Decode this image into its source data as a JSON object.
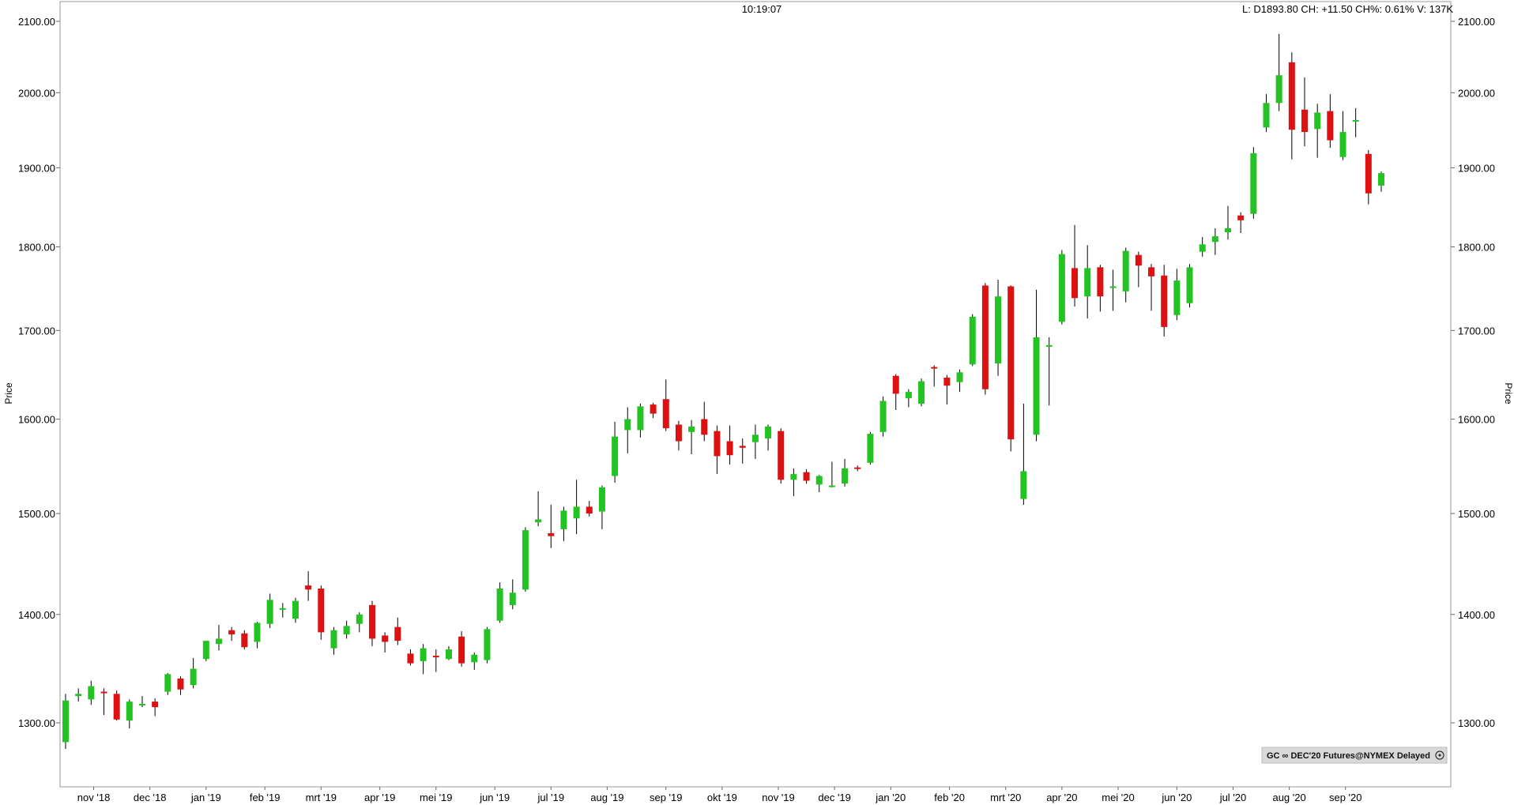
{
  "header": {
    "time": "10:19:07",
    "quote": "L: D1893.80 CH: +11.50 CH%: 0.61% V: 137K"
  },
  "badge": {
    "text": "GC ∞ DEC'20 Futures@NYMEX Delayed",
    "icon": "info-circle-icon"
  },
  "chart_data": {
    "type": "candlestick",
    "title": "",
    "xlabel": "",
    "ylabel": "Price",
    "y_scale": "log",
    "ylim": [
      1255,
      2135
    ],
    "yticks": [
      "1300.00",
      "1400.00",
      "1500.00",
      "1600.00",
      "1700.00",
      "1800.00",
      "1900.00",
      "2000.00",
      "2100.00"
    ],
    "yticks_values": [
      1300,
      1400,
      1500,
      1600,
      1700,
      1800,
      1900,
      2000,
      2100
    ],
    "month_labels": [
      {
        "label": "nov '18",
        "bar_index": 2.2
      },
      {
        "label": "dec '18",
        "bar_index": 6.6
      },
      {
        "label": "jan '19",
        "bar_index": 11.0
      },
      {
        "label": "feb '19",
        "bar_index": 15.6
      },
      {
        "label": "mrt '19",
        "bar_index": 20.0
      },
      {
        "label": "apr '19",
        "bar_index": 24.6
      },
      {
        "label": "mei '19",
        "bar_index": 29.0
      },
      {
        "label": "jun '19",
        "bar_index": 33.6
      },
      {
        "label": "jul '19",
        "bar_index": 38.0
      },
      {
        "label": "aug '19",
        "bar_index": 42.4
      },
      {
        "label": "sep '19",
        "bar_index": 47.0
      },
      {
        "label": "okt '19",
        "bar_index": 51.4
      },
      {
        "label": "nov '19",
        "bar_index": 55.8
      },
      {
        "label": "dec '19",
        "bar_index": 60.2
      },
      {
        "label": "jan '20",
        "bar_index": 64.6
      },
      {
        "label": "feb '20",
        "bar_index": 69.2
      },
      {
        "label": "mrt '20",
        "bar_index": 73.6
      },
      {
        "label": "apr '20",
        "bar_index": 78.0
      },
      {
        "label": "mei '20",
        "bar_index": 82.4
      },
      {
        "label": "jun '20",
        "bar_index": 87.0
      },
      {
        "label": "jul '20",
        "bar_index": 91.4
      },
      {
        "label": "aug '20",
        "bar_index": 95.8
      },
      {
        "label": "sep '20",
        "bar_index": 100.2
      }
    ],
    "colors": {
      "up": "#22c322",
      "down": "#dd1111",
      "wick": "#000000"
    },
    "candles": [
      {
        "o": 1283,
        "h": 1326,
        "l": 1277,
        "c": 1320
      },
      {
        "o": 1324,
        "h": 1331,
        "l": 1319,
        "c": 1326
      },
      {
        "o": 1321,
        "h": 1338,
        "l": 1316,
        "c": 1333
      },
      {
        "o": 1328,
        "h": 1331,
        "l": 1307,
        "c": 1327
      },
      {
        "o": 1326,
        "h": 1329,
        "l": 1302,
        "c": 1303
      },
      {
        "o": 1302,
        "h": 1321,
        "l": 1295,
        "c": 1319
      },
      {
        "o": 1316,
        "h": 1324,
        "l": 1314,
        "c": 1317
      },
      {
        "o": 1319,
        "h": 1322,
        "l": 1306,
        "c": 1314
      },
      {
        "o": 1328,
        "h": 1345,
        "l": 1325,
        "c": 1344
      },
      {
        "o": 1340,
        "h": 1342,
        "l": 1325,
        "c": 1330
      },
      {
        "o": 1334,
        "h": 1359,
        "l": 1331,
        "c": 1349
      },
      {
        "o": 1358,
        "h": 1374,
        "l": 1356,
        "c": 1375
      },
      {
        "o": 1372,
        "h": 1390,
        "l": 1366,
        "c": 1377
      },
      {
        "o": 1385,
        "h": 1388,
        "l": 1375,
        "c": 1381
      },
      {
        "o": 1382,
        "h": 1385,
        "l": 1367,
        "c": 1369
      },
      {
        "o": 1374,
        "h": 1393,
        "l": 1368,
        "c": 1392
      },
      {
        "o": 1391,
        "h": 1420,
        "l": 1387,
        "c": 1414
      },
      {
        "o": 1406,
        "h": 1411,
        "l": 1397,
        "c": 1406
      },
      {
        "o": 1396,
        "h": 1416,
        "l": 1392,
        "c": 1413
      },
      {
        "o": 1428,
        "h": 1442,
        "l": 1413,
        "c": 1424
      },
      {
        "o": 1425,
        "h": 1428,
        "l": 1376,
        "c": 1383
      },
      {
        "o": 1368,
        "h": 1388,
        "l": 1362,
        "c": 1385
      },
      {
        "o": 1381,
        "h": 1394,
        "l": 1377,
        "c": 1389
      },
      {
        "o": 1391,
        "h": 1402,
        "l": 1383,
        "c": 1400
      },
      {
        "o": 1409,
        "h": 1413,
        "l": 1370,
        "c": 1377
      },
      {
        "o": 1380,
        "h": 1383,
        "l": 1364,
        "c": 1374
      },
      {
        "o": 1388,
        "h": 1397,
        "l": 1371,
        "c": 1375
      },
      {
        "o": 1363,
        "h": 1367,
        "l": 1352,
        "c": 1354
      },
      {
        "o": 1356,
        "h": 1372,
        "l": 1344,
        "c": 1368
      },
      {
        "o": 1361,
        "h": 1367,
        "l": 1346,
        "c": 1360
      },
      {
        "o": 1358,
        "h": 1370,
        "l": 1357,
        "c": 1367
      },
      {
        "o": 1379,
        "h": 1384,
        "l": 1351,
        "c": 1354
      },
      {
        "o": 1355,
        "h": 1364,
        "l": 1348,
        "c": 1362
      },
      {
        "o": 1357,
        "h": 1388,
        "l": 1354,
        "c": 1386
      },
      {
        "o": 1394,
        "h": 1431,
        "l": 1392,
        "c": 1425
      },
      {
        "o": 1409,
        "h": 1434,
        "l": 1405,
        "c": 1421
      },
      {
        "o": 1424,
        "h": 1486,
        "l": 1422,
        "c": 1483
      },
      {
        "o": 1491,
        "h": 1523,
        "l": 1487,
        "c": 1494
      },
      {
        "o": 1480,
        "h": 1509,
        "l": 1465,
        "c": 1477
      },
      {
        "o": 1484,
        "h": 1507,
        "l": 1472,
        "c": 1503
      },
      {
        "o": 1495,
        "h": 1535,
        "l": 1479,
        "c": 1507
      },
      {
        "o": 1507,
        "h": 1513,
        "l": 1497,
        "c": 1500
      },
      {
        "o": 1502,
        "h": 1529,
        "l": 1484,
        "c": 1527
      },
      {
        "o": 1539,
        "h": 1597,
        "l": 1532,
        "c": 1581
      },
      {
        "o": 1588,
        "h": 1613,
        "l": 1563,
        "c": 1600
      },
      {
        "o": 1588,
        "h": 1617,
        "l": 1580,
        "c": 1614
      },
      {
        "o": 1616,
        "h": 1618,
        "l": 1601,
        "c": 1606
      },
      {
        "o": 1622,
        "h": 1644,
        "l": 1587,
        "c": 1590
      },
      {
        "o": 1594,
        "h": 1598,
        "l": 1566,
        "c": 1576
      },
      {
        "o": 1586,
        "h": 1599,
        "l": 1562,
        "c": 1592
      },
      {
        "o": 1600,
        "h": 1619,
        "l": 1576,
        "c": 1583
      },
      {
        "o": 1587,
        "h": 1593,
        "l": 1541,
        "c": 1560
      },
      {
        "o": 1576,
        "h": 1593,
        "l": 1551,
        "c": 1561
      },
      {
        "o": 1571,
        "h": 1579,
        "l": 1552,
        "c": 1569
      },
      {
        "o": 1575,
        "h": 1594,
        "l": 1557,
        "c": 1583
      },
      {
        "o": 1579,
        "h": 1594,
        "l": 1566,
        "c": 1592
      },
      {
        "o": 1587,
        "h": 1590,
        "l": 1531,
        "c": 1535
      },
      {
        "o": 1535,
        "h": 1547,
        "l": 1518,
        "c": 1541
      },
      {
        "o": 1543,
        "h": 1546,
        "l": 1531,
        "c": 1534
      },
      {
        "o": 1530,
        "h": 1540,
        "l": 1522,
        "c": 1539
      },
      {
        "o": 1528,
        "h": 1554,
        "l": 1527,
        "c": 1529
      },
      {
        "o": 1531,
        "h": 1557,
        "l": 1528,
        "c": 1547
      },
      {
        "o": 1548,
        "h": 1550,
        "l": 1544,
        "c": 1547
      },
      {
        "o": 1553,
        "h": 1586,
        "l": 1551,
        "c": 1584
      },
      {
        "o": 1586,
        "h": 1625,
        "l": 1581,
        "c": 1620
      },
      {
        "o": 1648,
        "h": 1650,
        "l": 1610,
        "c": 1628
      },
      {
        "o": 1623,
        "h": 1633,
        "l": 1613,
        "c": 1630
      },
      {
        "o": 1617,
        "h": 1645,
        "l": 1614,
        "c": 1642
      },
      {
        "o": 1658,
        "h": 1660,
        "l": 1636,
        "c": 1657
      },
      {
        "o": 1646,
        "h": 1649,
        "l": 1616,
        "c": 1637
      },
      {
        "o": 1641,
        "h": 1655,
        "l": 1630,
        "c": 1652
      },
      {
        "o": 1661,
        "h": 1719,
        "l": 1659,
        "c": 1716
      },
      {
        "o": 1753,
        "h": 1756,
        "l": 1627,
        "c": 1633
      },
      {
        "o": 1662,
        "h": 1760,
        "l": 1648,
        "c": 1740
      },
      {
        "o": 1752,
        "h": 1753,
        "l": 1565,
        "c": 1578
      },
      {
        "o": 1515,
        "h": 1617,
        "l": 1509,
        "c": 1544
      },
      {
        "o": 1583,
        "h": 1748,
        "l": 1576,
        "c": 1692
      },
      {
        "o": 1683,
        "h": 1692,
        "l": 1615,
        "c": 1683
      },
      {
        "o": 1710,
        "h": 1796,
        "l": 1707,
        "c": 1791
      },
      {
        "o": 1774,
        "h": 1827,
        "l": 1728,
        "c": 1738
      },
      {
        "o": 1740,
        "h": 1802,
        "l": 1714,
        "c": 1774
      },
      {
        "o": 1775,
        "h": 1778,
        "l": 1722,
        "c": 1740
      },
      {
        "o": 1751,
        "h": 1772,
        "l": 1723,
        "c": 1752
      },
      {
        "o": 1746,
        "h": 1799,
        "l": 1733,
        "c": 1795
      },
      {
        "o": 1790,
        "h": 1794,
        "l": 1751,
        "c": 1777
      },
      {
        "o": 1775,
        "h": 1779,
        "l": 1723,
        "c": 1764
      },
      {
        "o": 1765,
        "h": 1778,
        "l": 1693,
        "c": 1704
      },
      {
        "o": 1718,
        "h": 1773,
        "l": 1712,
        "c": 1759
      },
      {
        "o": 1732,
        "h": 1779,
        "l": 1727,
        "c": 1775
      },
      {
        "o": 1794,
        "h": 1812,
        "l": 1788,
        "c": 1803
      },
      {
        "o": 1806,
        "h": 1823,
        "l": 1790,
        "c": 1813
      },
      {
        "o": 1818,
        "h": 1851,
        "l": 1809,
        "c": 1823
      },
      {
        "o": 1839,
        "h": 1843,
        "l": 1817,
        "c": 1833
      },
      {
        "o": 1841,
        "h": 1927,
        "l": 1835,
        "c": 1919
      },
      {
        "o": 1953,
        "h": 1998,
        "l": 1947,
        "c": 1986
      },
      {
        "o": 1986,
        "h": 2082,
        "l": 1975,
        "c": 2024
      },
      {
        "o": 2042,
        "h": 2056,
        "l": 1911,
        "c": 1950
      },
      {
        "o": 1977,
        "h": 2021,
        "l": 1928,
        "c": 1947
      },
      {
        "o": 1951,
        "h": 1985,
        "l": 1913,
        "c": 1973
      },
      {
        "o": 1975,
        "h": 1998,
        "l": 1926,
        "c": 1936
      },
      {
        "o": 1914,
        "h": 1975,
        "l": 1910,
        "c": 1947
      },
      {
        "o": 1963,
        "h": 1979,
        "l": 1940,
        "c": 1963
      },
      {
        "o": 1918,
        "h": 1923,
        "l": 1853,
        "c": 1867
      },
      {
        "o": 1877,
        "h": 1895,
        "l": 1869,
        "c": 1893
      }
    ]
  }
}
